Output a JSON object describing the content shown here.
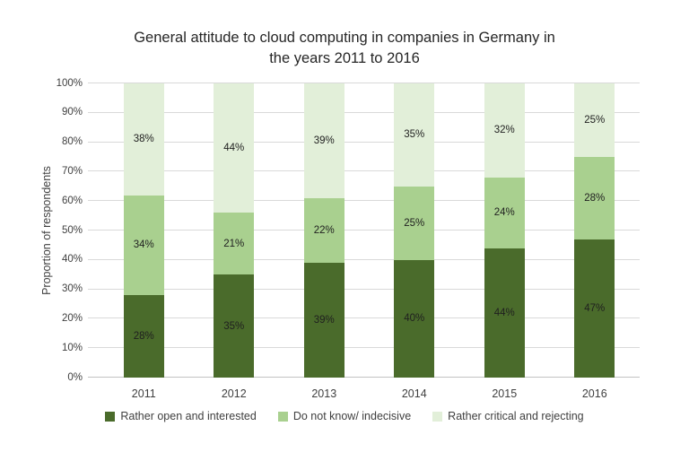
{
  "chart_data": {
    "type": "bar",
    "stacked": true,
    "title": "General attitude to cloud computing in companies in Germany in the years 2011 to 2016",
    "title_lines": [
      "General attitude to cloud computing in companies in Germany in",
      "the years 2011 to 2016"
    ],
    "xlabel": "",
    "ylabel": "Proportion of respondents",
    "categories": [
      "2011",
      "2012",
      "2013",
      "2014",
      "2015",
      "2016"
    ],
    "series": [
      {
        "name": "Rather open and interested",
        "color": "#4a6b2b",
        "values": [
          28,
          35,
          39,
          40,
          44,
          47
        ]
      },
      {
        "name": "Do not know/ indecisive",
        "color": "#a9d08f",
        "values": [
          34,
          21,
          22,
          25,
          24,
          28
        ]
      },
      {
        "name": "Rather critical and rejecting",
        "color": "#e2efd9",
        "values": [
          38,
          44,
          39,
          35,
          32,
          25
        ]
      }
    ],
    "value_suffix": "%",
    "ylim": [
      0,
      100
    ],
    "ytick_labels": [
      "0%",
      "10%",
      "20%",
      "30%",
      "40%",
      "50%",
      "60%",
      "70%",
      "80%",
      "90%",
      "100%"
    ],
    "grid": true,
    "legend_position": "bottom",
    "colors": {
      "gridline": "#d9d9d9",
      "axis_line": "#c3c3c3",
      "title_text": "#262626",
      "axis_text": "#3f3f3f",
      "data_label_text": "#1f1f1f",
      "background": "#ffffff"
    }
  }
}
